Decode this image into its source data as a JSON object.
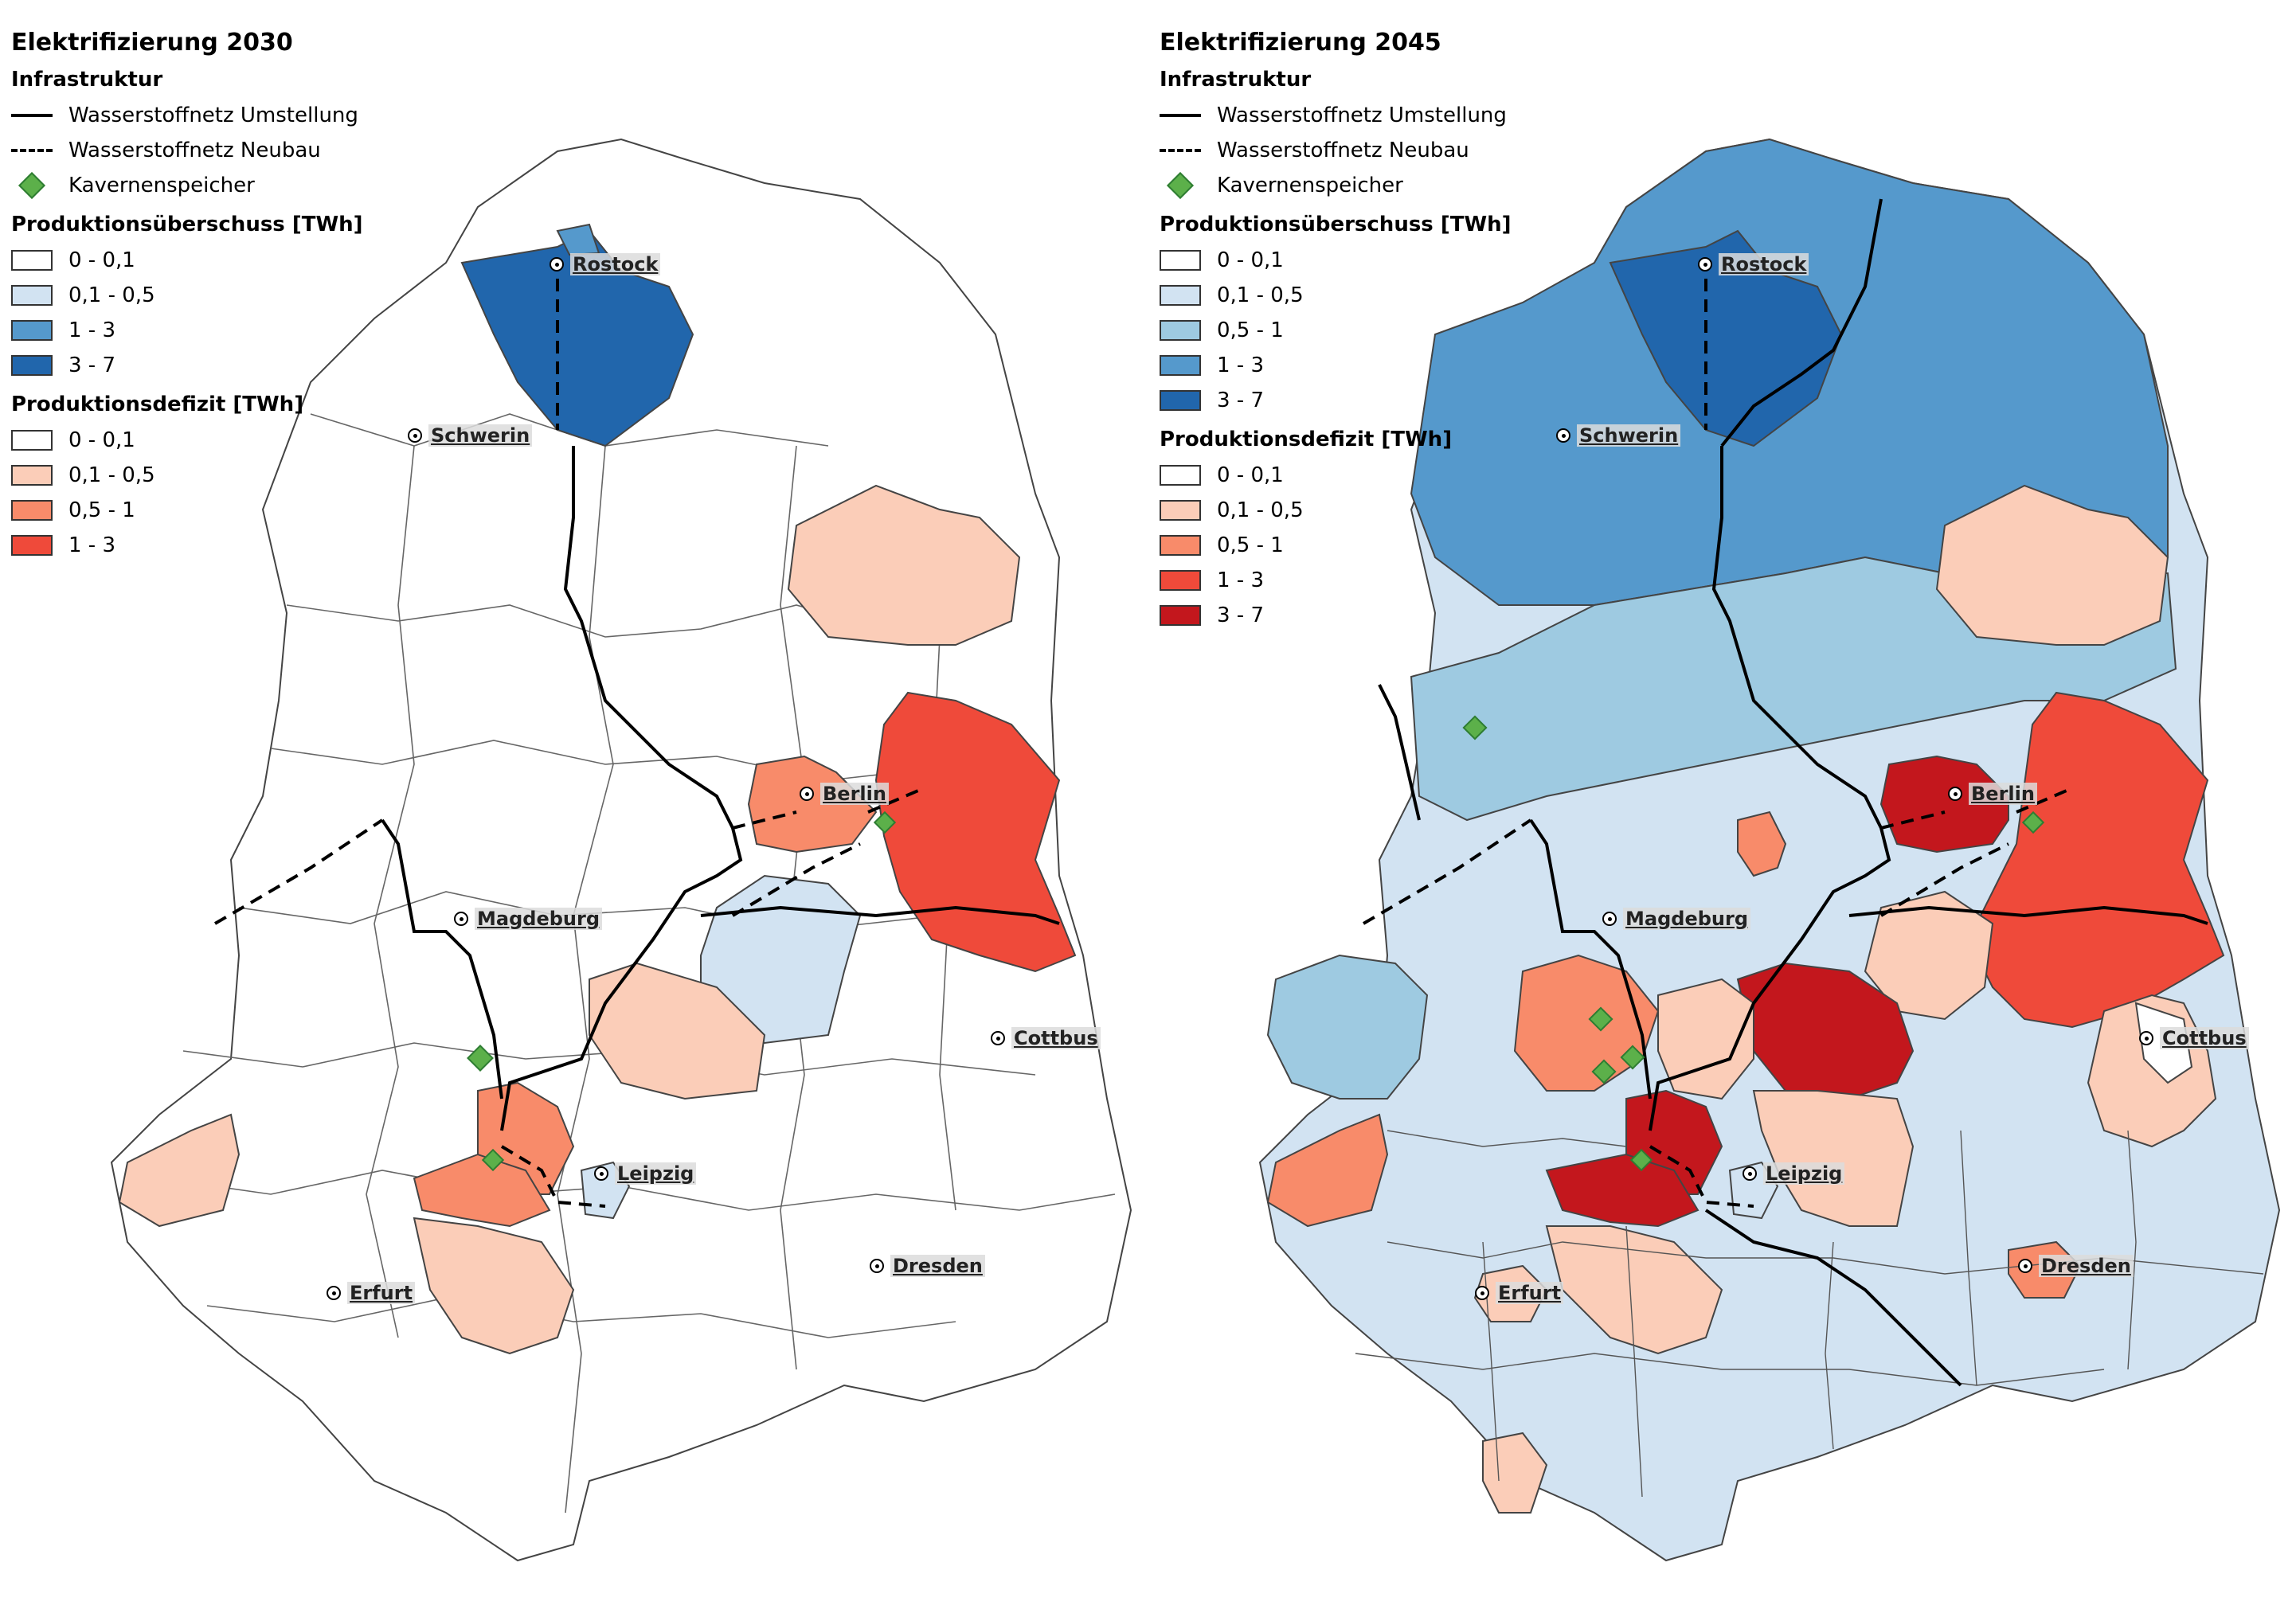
{
  "colors": {
    "white": "#ffffff",
    "blue_1": "#d2e3f2",
    "blue_2": "#9ecae1",
    "blue_3": "#5599cc",
    "blue_4": "#2166ac",
    "red_1": "#fbcdb8",
    "red_2": "#f88b6a",
    "red_3": "#ef4a3a",
    "red_4": "#c3171d",
    "border": "#444444",
    "storage": "#5cb04a"
  },
  "panels": [
    {
      "title": "Elektrifizierung 2030",
      "infra_heading": "Infrastruktur",
      "infra": [
        {
          "label": "Wasserstoffnetz Umstellung",
          "style": "solid"
        },
        {
          "label": "Wasserstoffnetz Neubau",
          "style": "dash"
        },
        {
          "label": "Kavernenspeicher",
          "style": "diamond"
        }
      ],
      "surplus_heading": "Produktionsüberschuss [TWh]",
      "surplus": [
        {
          "label": "0 - 0,1",
          "color": "#ffffff"
        },
        {
          "label": "0,1 - 0,5",
          "color": "#d2e3f2"
        },
        {
          "label": "1 - 3",
          "color": "#5599cc"
        },
        {
          "label": "3 - 7",
          "color": "#2166ac"
        }
      ],
      "deficit_heading": "Produktionsdefizit [TWh]",
      "deficit": [
        {
          "label": "0 - 0,1",
          "color": "#ffffff"
        },
        {
          "label": "0,1 - 0,5",
          "color": "#fbcdb8"
        },
        {
          "label": "0,5 - 1",
          "color": "#f88b6a"
        },
        {
          "label": "1 - 3",
          "color": "#ef4a3a"
        }
      ],
      "cities": [
        "Rostock",
        "Schwerin",
        "Berlin",
        "Magdeburg",
        "Cottbus",
        "Leipzig",
        "Dresden",
        "Erfurt"
      ]
    },
    {
      "title": "Elektrifizierung 2045",
      "infra_heading": "Infrastruktur",
      "infra": [
        {
          "label": "Wasserstoffnetz Umstellung",
          "style": "solid"
        },
        {
          "label": "Wasserstoffnetz Neubau",
          "style": "dash"
        },
        {
          "label": "Kavernenspeicher",
          "style": "diamond"
        }
      ],
      "surplus_heading": "Produktionsüberschuss [TWh]",
      "surplus": [
        {
          "label": "0 - 0,1",
          "color": "#ffffff"
        },
        {
          "label": "0,1 - 0,5",
          "color": "#d2e3f2"
        },
        {
          "label": "0,5 - 1",
          "color": "#9ecae1"
        },
        {
          "label": "1 - 3",
          "color": "#5599cc"
        },
        {
          "label": "3 - 7",
          "color": "#2166ac"
        }
      ],
      "deficit_heading": "Produktionsdefizit [TWh]",
      "deficit": [
        {
          "label": "0 - 0,1",
          "color": "#ffffff"
        },
        {
          "label": "0,1 - 0,5",
          "color": "#fbcdb8"
        },
        {
          "label": "0,5 - 1",
          "color": "#f88b6a"
        },
        {
          "label": "1 - 3",
          "color": "#ef4a3a"
        },
        {
          "label": "3 - 7",
          "color": "#c3171d"
        }
      ],
      "cities": [
        "Rostock",
        "Schwerin",
        "Berlin",
        "Magdeburg",
        "Cottbus",
        "Leipzig",
        "Dresden",
        "Erfurt"
      ]
    }
  ]
}
